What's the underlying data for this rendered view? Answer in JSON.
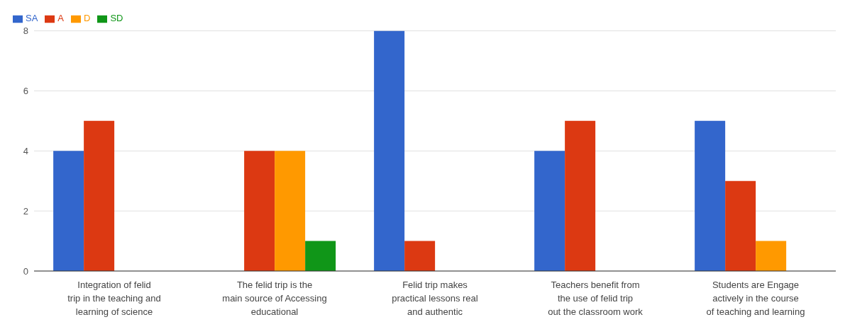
{
  "chart_data": {
    "type": "bar",
    "categories": [
      "Integration of felid trip in the teaching and learning of science",
      "The felid trip is the main source of Accessing educational",
      "Felid trip makes practical lessons real and authentic",
      "Teachers benefit from the use of felid trip out the classroom work",
      "Students are Engage actively in the course of teaching and learning"
    ],
    "series": [
      {
        "name": "SA",
        "color": "#3366cc",
        "values": [
          4,
          0,
          8,
          4,
          5
        ]
      },
      {
        "name": "A",
        "color": "#dc3912",
        "values": [
          5,
          4,
          1,
          5,
          3
        ]
      },
      {
        "name": "D",
        "color": "#ff9900",
        "values": [
          0,
          4,
          0,
          0,
          1
        ]
      },
      {
        "name": "SD",
        "color": "#109618",
        "values": [
          0,
          1,
          0,
          0,
          0
        ]
      }
    ],
    "ylim": [
      0,
      8
    ],
    "yticks": [
      0,
      2,
      4,
      6,
      8
    ],
    "grid": "y",
    "legend": "top left"
  }
}
